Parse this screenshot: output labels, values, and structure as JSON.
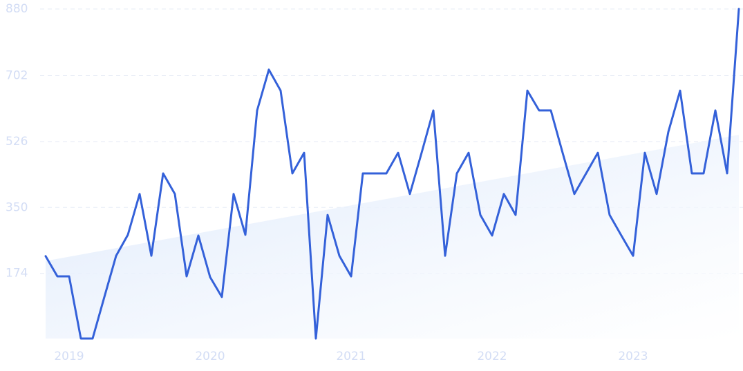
{
  "chart_data": {
    "type": "line",
    "categories": [
      null,
      null,
      "2019",
      null,
      null,
      null,
      null,
      null,
      null,
      null,
      null,
      null,
      null,
      null,
      "2020",
      null,
      null,
      null,
      null,
      null,
      null,
      null,
      null,
      null,
      null,
      null,
      "2021",
      null,
      null,
      null,
      null,
      null,
      null,
      null,
      null,
      null,
      null,
      null,
      "2022",
      null,
      null,
      null,
      null,
      null,
      null,
      null,
      null,
      null,
      null,
      null,
      "2023",
      null,
      null,
      null,
      null,
      null,
      null,
      null,
      null,
      null
    ],
    "series": [
      {
        "color": "#3461d9",
        "values": [
          220,
          166,
          166,
          0,
          0,
          111,
          221,
          277,
          386,
          221,
          441,
          386,
          166,
          275,
          164,
          111,
          386,
          277,
          609,
          718,
          662,
          441,
          496,
          0,
          330,
          221,
          166,
          441,
          441,
          441,
          496,
          386,
          496,
          609,
          221,
          441,
          496,
          330,
          275,
          386,
          330,
          662,
          609,
          609,
          496,
          386,
          441,
          496,
          330,
          275,
          221,
          496,
          386,
          552,
          662,
          441,
          441,
          609,
          441,
          880
        ]
      }
    ],
    "trend": [
      207,
      544
    ],
    "trend_color": "#dde9fb",
    "ylim": [
      0,
      880
    ],
    "yticks": [
      174,
      350,
      526,
      702,
      880
    ],
    "grid": true
  }
}
